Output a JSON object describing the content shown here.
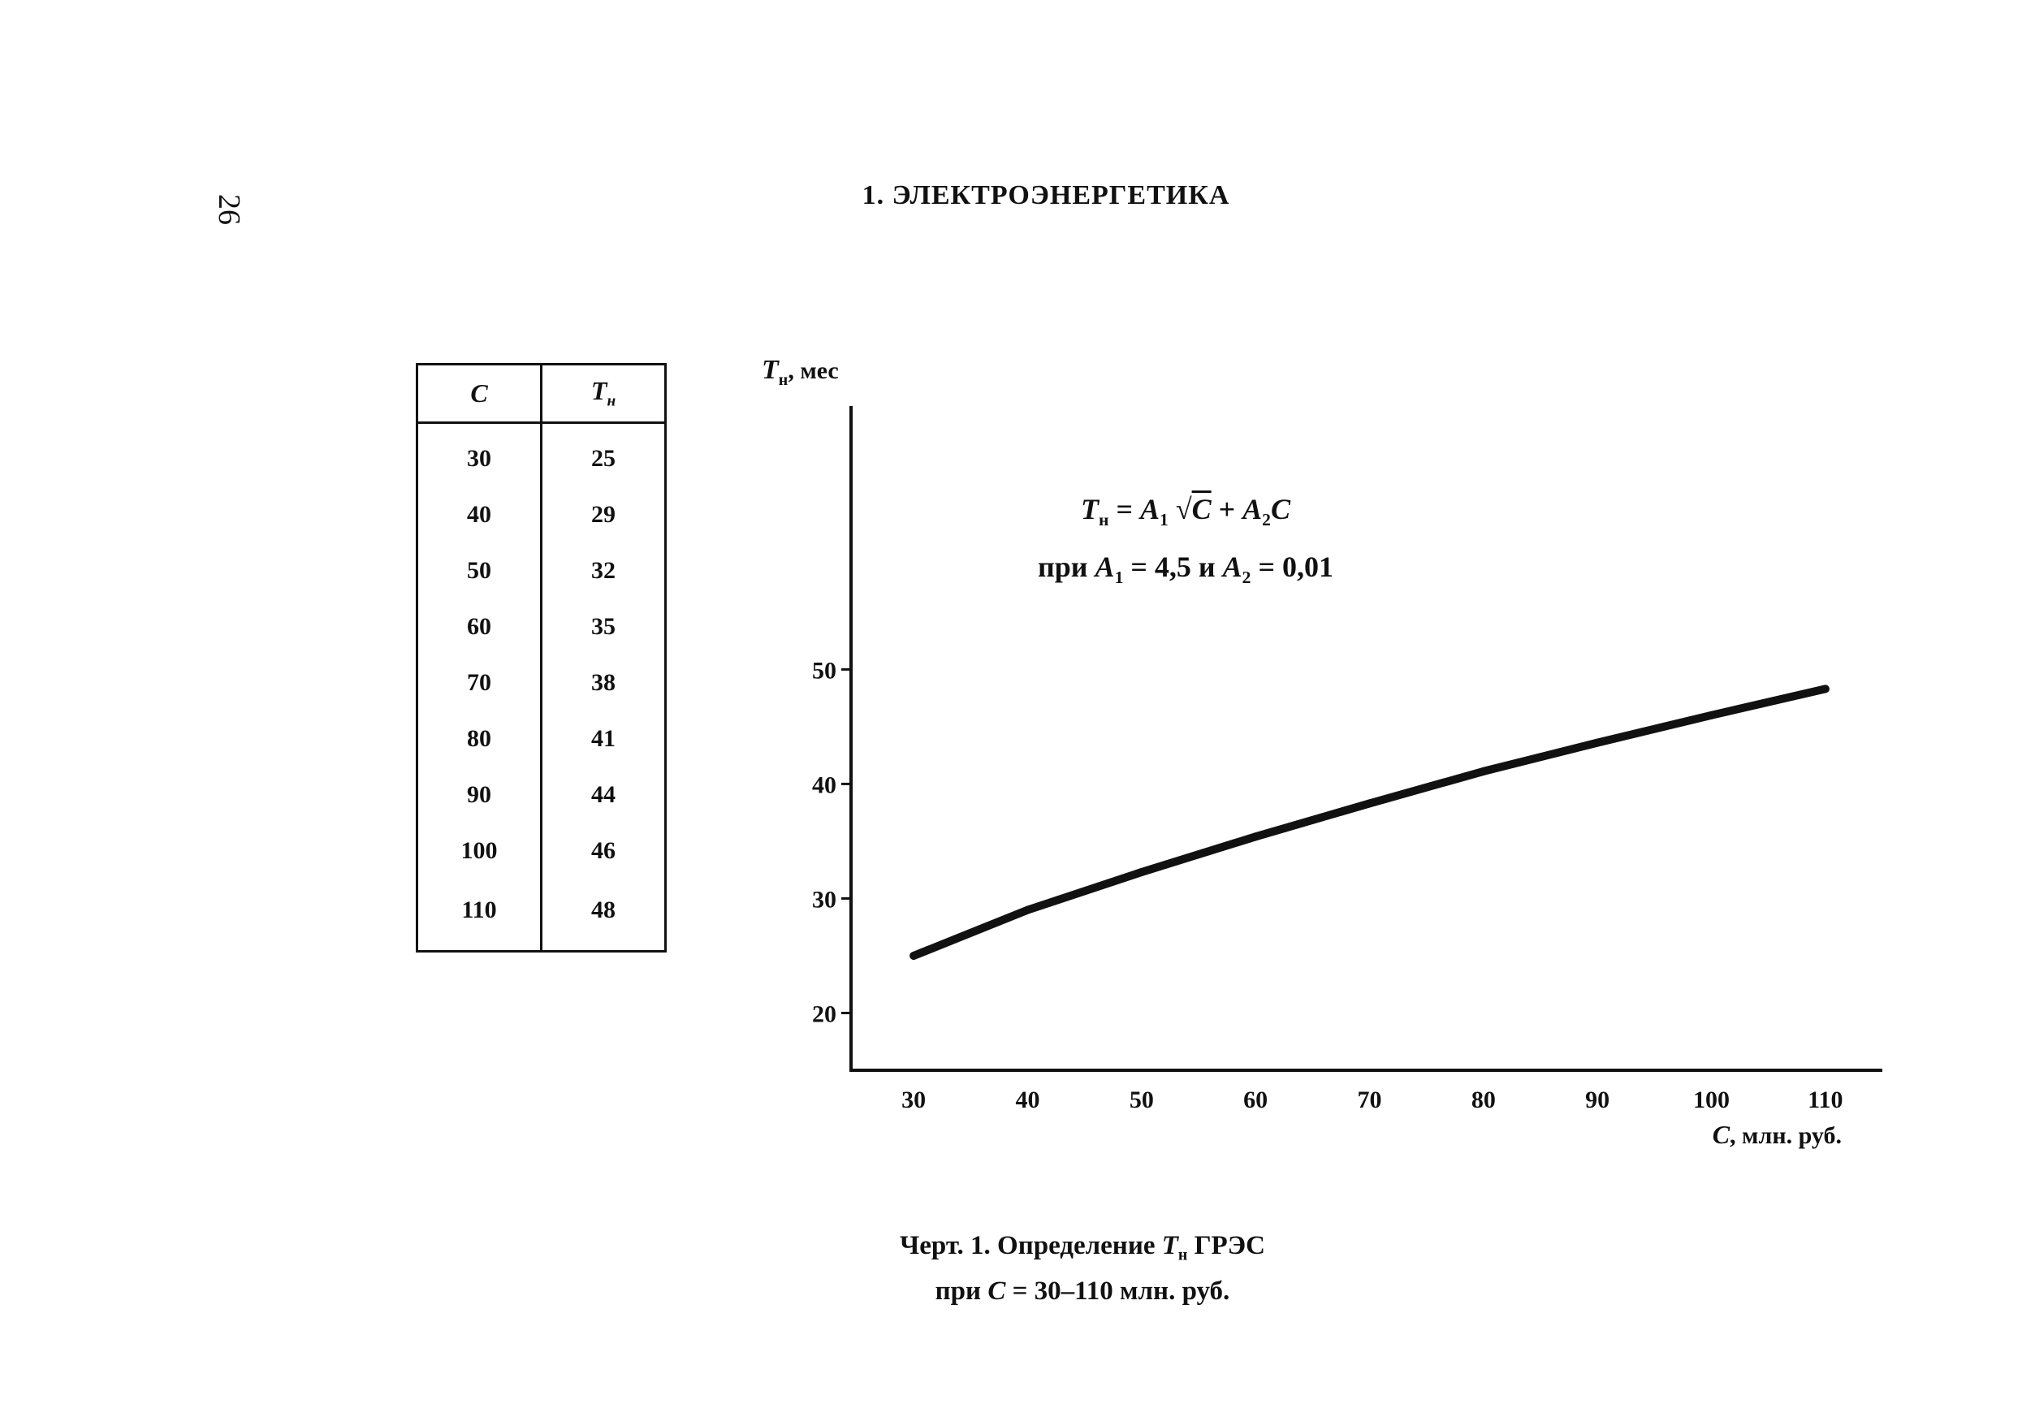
{
  "page": {
    "page_number": "26",
    "section_title": "1. ЭЛЕКТРОЭНЕРГЕТИКА"
  },
  "table": {
    "headers": [
      "C",
      "T",
      "н"
    ],
    "rows": [
      [
        "30",
        "25"
      ],
      [
        "40",
        "29"
      ],
      [
        "50",
        "32"
      ],
      [
        "60",
        "35"
      ],
      [
        "70",
        "38"
      ],
      [
        "80",
        "41"
      ],
      [
        "90",
        "44"
      ],
      [
        "100",
        "46"
      ],
      [
        "110",
        "48"
      ]
    ]
  },
  "formula": {
    "line1": {
      "lhs": "T",
      "lhs_sub": "н",
      "eq": " = ",
      "a1": "A",
      "a1_sub": "1",
      "sqrt": "√",
      "c": "C",
      "plus": " + ",
      "a2": "A",
      "a2_sub": "2",
      "c2": "C"
    },
    "line2": {
      "pri": "при ",
      "a1": "A",
      "a1_sub": "1",
      "v1": " = 4,5 и ",
      "a2": "A",
      "a2_sub": "2",
      "v2": " = 0,01"
    }
  },
  "caption": {
    "line1_prefix": "Черт. 1. Определение ",
    "line1_sym": "T",
    "line1_sub": "н",
    "line1_suffix": " ГРЭС",
    "line2_prefix": "при ",
    "line2_sym": "C",
    "line2_suffix": " = 30–110 млн. руб."
  },
  "chart_data": {
    "type": "line",
    "ylabel_sym": "T",
    "ylabel_sub": "н",
    "ylabel_unit": ", мес",
    "xlabel_sym": "C",
    "xlabel_unit": ", млн. руб.",
    "xlim": [
      24.5,
      115
    ],
    "ylim": [
      15,
      73
    ],
    "xticks": [
      30,
      40,
      50,
      60,
      70,
      80,
      90,
      100,
      110
    ],
    "yticks": [
      20,
      30,
      40,
      50
    ],
    "grid": false,
    "x": [
      30,
      40,
      50,
      60,
      70,
      80,
      90,
      100,
      110
    ],
    "y": [
      25,
      29,
      32.3,
      35.4,
      38.3,
      41.1,
      43.6,
      46.0,
      48.3
    ],
    "line_color": "#111111"
  }
}
